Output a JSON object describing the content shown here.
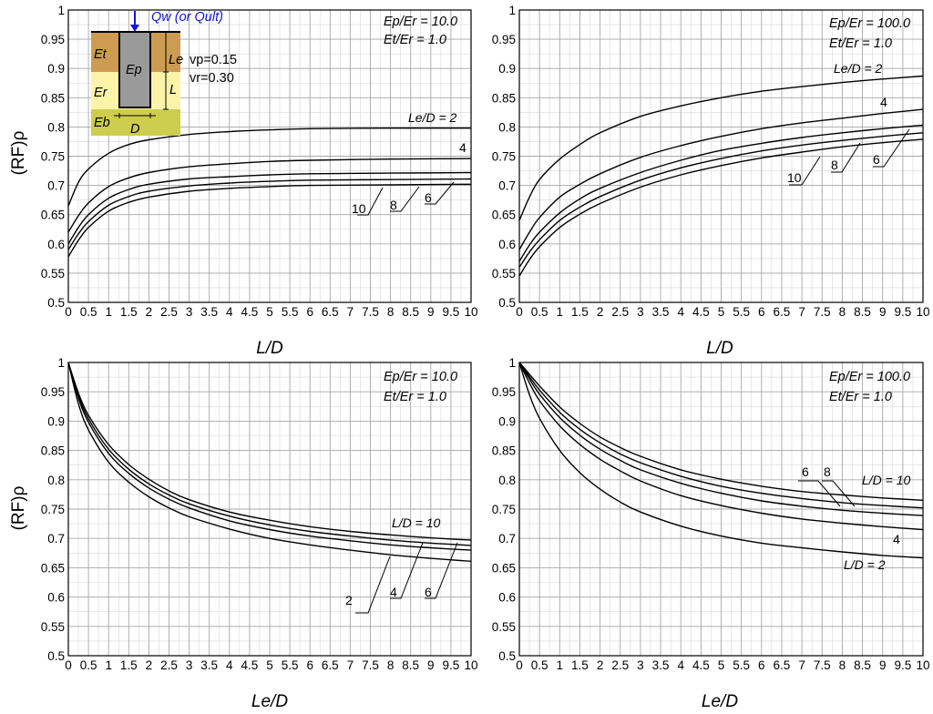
{
  "chart_data": [
    {
      "id": "tl",
      "type": "line",
      "xlabel": "L/D",
      "ylabel": "(RF)ρ",
      "xlim": [
        0,
        10
      ],
      "ylim": [
        0.5,
        1.0
      ],
      "xticks": [
        "0",
        "0.5",
        "1",
        "1.5",
        "2",
        "2.5",
        "3",
        "3.5",
        "4",
        "4.5",
        "5",
        "5.5",
        "6",
        "6.5",
        "7",
        "7.5",
        "8",
        "8.5",
        "9",
        "9.5",
        "10"
      ],
      "yticks": [
        "0.5",
        "0.55",
        "0.6",
        "0.65",
        "0.7",
        "0.75",
        "0.8",
        "0.85",
        "0.9",
        "0.95",
        "1"
      ],
      "grid": true,
      "param_label_lines": [
        "Ep/Er = 10.0",
        "Et/Er = 1.0"
      ],
      "series": [
        {
          "label": "Le/D = 2",
          "x": [
            0,
            0.25,
            0.5,
            1,
            1.5,
            2,
            3,
            4,
            5,
            6,
            8,
            10
          ],
          "y": [
            0.665,
            0.705,
            0.728,
            0.755,
            0.77,
            0.778,
            0.787,
            0.792,
            0.795,
            0.797,
            0.798,
            0.798
          ]
        },
        {
          "label": "4",
          "x": [
            0,
            0.25,
            0.5,
            1,
            1.5,
            2,
            3,
            4,
            5,
            6,
            8,
            10
          ],
          "y": [
            0.62,
            0.648,
            0.67,
            0.698,
            0.713,
            0.722,
            0.732,
            0.737,
            0.741,
            0.743,
            0.745,
            0.746
          ]
        },
        {
          "label": "6",
          "x": [
            0,
            0.25,
            0.5,
            1,
            1.5,
            2,
            3,
            4,
            5,
            6,
            8,
            10
          ],
          "y": [
            0.6,
            0.628,
            0.65,
            0.678,
            0.693,
            0.702,
            0.711,
            0.715,
            0.718,
            0.72,
            0.721,
            0.722
          ]
        },
        {
          "label": "8",
          "x": [
            0,
            0.25,
            0.5,
            1,
            1.5,
            2,
            3,
            4,
            5,
            6,
            8,
            10
          ],
          "y": [
            0.59,
            0.617,
            0.638,
            0.666,
            0.681,
            0.69,
            0.699,
            0.704,
            0.707,
            0.709,
            0.71,
            0.711
          ]
        },
        {
          "label": "10",
          "x": [
            0,
            0.25,
            0.5,
            1,
            1.5,
            2,
            3,
            4,
            5,
            6,
            8,
            10
          ],
          "y": [
            0.578,
            0.606,
            0.628,
            0.656,
            0.671,
            0.68,
            0.69,
            0.695,
            0.698,
            0.7,
            0.701,
            0.702
          ]
        }
      ],
      "inset": {
        "load": "Qw (or Qult)",
        "pile": "Ep",
        "top": "Et",
        "mid": "Er",
        "bot": "Eb",
        "emb": "Le",
        "len": "L",
        "dia": "D",
        "nup": "vp=0.15",
        "nur": "vr=0.30"
      }
    },
    {
      "id": "tr",
      "type": "line",
      "xlabel": "L/D",
      "ylabel": "",
      "xlim": [
        0,
        10
      ],
      "ylim": [
        0.5,
        1.0
      ],
      "xticks": [
        "0",
        "0.5",
        "1",
        "1.5",
        "2",
        "2.5",
        "3",
        "3.5",
        "4",
        "4.5",
        "5",
        "5.5",
        "6",
        "6.5",
        "7",
        "7.5",
        "8",
        "8.5",
        "9",
        "9.5",
        "10"
      ],
      "yticks": [
        "0.5",
        "0.55",
        "0.6",
        "0.65",
        "0.7",
        "0.75",
        "0.8",
        "0.85",
        "0.9",
        "0.95",
        "1"
      ],
      "grid": true,
      "param_label_lines": [
        "Ep/Er = 100.0",
        "Et/Er = 1.0"
      ],
      "series": [
        {
          "label": "Le/D = 2",
          "x": [
            0,
            0.25,
            0.5,
            1,
            1.5,
            2,
            3,
            4,
            5,
            6,
            7,
            8,
            9,
            10
          ],
          "y": [
            0.64,
            0.68,
            0.71,
            0.745,
            0.77,
            0.79,
            0.818,
            0.836,
            0.85,
            0.861,
            0.869,
            0.876,
            0.882,
            0.887
          ]
        },
        {
          "label": "4",
          "x": [
            0,
            0.25,
            0.5,
            1,
            1.5,
            2,
            3,
            4,
            5,
            6,
            7,
            8,
            9,
            10
          ],
          "y": [
            0.59,
            0.62,
            0.645,
            0.68,
            0.702,
            0.72,
            0.748,
            0.768,
            0.784,
            0.797,
            0.807,
            0.815,
            0.823,
            0.83
          ]
        },
        {
          "label": "6",
          "x": [
            0,
            0.25,
            0.5,
            1,
            1.5,
            2,
            3,
            4,
            5,
            6,
            7,
            8,
            9,
            10
          ],
          "y": [
            0.57,
            0.598,
            0.62,
            0.653,
            0.677,
            0.695,
            0.722,
            0.743,
            0.76,
            0.772,
            0.782,
            0.79,
            0.797,
            0.803
          ]
        },
        {
          "label": "8",
          "x": [
            0,
            0.25,
            0.5,
            1,
            1.5,
            2,
            3,
            4,
            5,
            6,
            7,
            8,
            9,
            10
          ],
          "y": [
            0.56,
            0.586,
            0.607,
            0.64,
            0.663,
            0.681,
            0.709,
            0.73,
            0.746,
            0.759,
            0.769,
            0.777,
            0.784,
            0.79
          ]
        },
        {
          "label": "10",
          "x": [
            0,
            0.25,
            0.5,
            1,
            1.5,
            2,
            3,
            4,
            5,
            6,
            7,
            8,
            9,
            10
          ],
          "y": [
            0.545,
            0.573,
            0.595,
            0.628,
            0.651,
            0.669,
            0.697,
            0.718,
            0.734,
            0.747,
            0.757,
            0.766,
            0.773,
            0.779
          ]
        }
      ]
    },
    {
      "id": "bl",
      "type": "line",
      "xlabel": "Le/D",
      "ylabel": "(RF)ρ",
      "xlim": [
        0,
        10
      ],
      "ylim": [
        0.5,
        1.0
      ],
      "xticks": [
        "0",
        "0.5",
        "1",
        "1.5",
        "2",
        "2.5",
        "3",
        "3.5",
        "4",
        "4.5",
        "5",
        "5.5",
        "6",
        "6.5",
        "7",
        "7.5",
        "8",
        "8.5",
        "9",
        "9.5",
        "10"
      ],
      "yticks": [
        "0.5",
        "0.55",
        "0.6",
        "0.65",
        "0.7",
        "0.75",
        "0.8",
        "0.85",
        "0.9",
        "0.95",
        "1"
      ],
      "grid": true,
      "param_label_lines": [
        "Ep/Er = 10.0",
        "Et/Er = 1.0"
      ],
      "series": [
        {
          "label": "2",
          "x": [
            0,
            0.25,
            0.5,
            1,
            1.5,
            2,
            2.5,
            3,
            4,
            5,
            6,
            7,
            8,
            9,
            10
          ],
          "y": [
            1.0,
            0.93,
            0.885,
            0.83,
            0.796,
            0.771,
            0.752,
            0.737,
            0.716,
            0.7,
            0.689,
            0.68,
            0.672,
            0.666,
            0.661
          ]
        },
        {
          "label": "4",
          "x": [
            0,
            0.25,
            0.5,
            1,
            1.5,
            2,
            2.5,
            3,
            4,
            5,
            6,
            7,
            8,
            9,
            10
          ],
          "y": [
            1.0,
            0.94,
            0.898,
            0.845,
            0.811,
            0.786,
            0.767,
            0.752,
            0.73,
            0.715,
            0.704,
            0.696,
            0.689,
            0.684,
            0.68
          ]
        },
        {
          "label": "6",
          "x": [
            0,
            0.25,
            0.5,
            1,
            1.5,
            2,
            2.5,
            3,
            4,
            5,
            6,
            7,
            8,
            9,
            10
          ],
          "y": [
            1.0,
            0.944,
            0.904,
            0.852,
            0.818,
            0.793,
            0.774,
            0.759,
            0.738,
            0.723,
            0.712,
            0.704,
            0.697,
            0.692,
            0.688
          ]
        },
        {
          "label": "L/D = 10",
          "x": [
            0,
            0.25,
            0.5,
            1,
            1.5,
            2,
            2.5,
            3,
            4,
            5,
            6,
            7,
            8,
            9,
            10
          ],
          "y": [
            1.0,
            0.948,
            0.91,
            0.86,
            0.826,
            0.801,
            0.781,
            0.766,
            0.745,
            0.731,
            0.72,
            0.712,
            0.706,
            0.701,
            0.697
          ]
        }
      ]
    },
    {
      "id": "br",
      "type": "line",
      "xlabel": "Le/D",
      "ylabel": "",
      "xlim": [
        0,
        10
      ],
      "ylim": [
        0.5,
        1.0
      ],
      "xticks": [
        "0",
        "0.5",
        "1",
        "1.5",
        "2",
        "2.5",
        "3",
        "3.5",
        "4",
        "4.5",
        "5",
        "5.5",
        "6",
        "6.5",
        "7",
        "7.5",
        "8",
        "8.5",
        "9",
        "9.5",
        "10"
      ],
      "yticks": [
        "0.5",
        "0.55",
        "0.6",
        "0.65",
        "0.7",
        "0.75",
        "0.8",
        "0.85",
        "0.9",
        "0.95",
        "1"
      ],
      "grid": true,
      "param_label_lines": [
        "Ep/Er = 100.0",
        "Et/Er = 1.0"
      ],
      "series": [
        {
          "label": "L/D = 2",
          "x": [
            0,
            0.25,
            0.5,
            1,
            1.5,
            2,
            2.5,
            3,
            4,
            5,
            6,
            7,
            8,
            9,
            10
          ],
          "y": [
            1.0,
            0.945,
            0.905,
            0.85,
            0.812,
            0.784,
            0.762,
            0.745,
            0.721,
            0.704,
            0.692,
            0.684,
            0.677,
            0.671,
            0.667
          ]
        },
        {
          "label": "4",
          "x": [
            0,
            0.25,
            0.5,
            1,
            1.5,
            2,
            2.5,
            3,
            4,
            5,
            6,
            7,
            8,
            9,
            10
          ],
          "y": [
            1.0,
            0.965,
            0.935,
            0.892,
            0.86,
            0.835,
            0.815,
            0.798,
            0.773,
            0.756,
            0.743,
            0.733,
            0.726,
            0.72,
            0.715
          ]
        },
        {
          "label": "6",
          "x": [
            0,
            0.25,
            0.5,
            1,
            1.5,
            2,
            2.5,
            3,
            4,
            5,
            6,
            7,
            8,
            9,
            10
          ],
          "y": [
            1.0,
            0.972,
            0.946,
            0.906,
            0.876,
            0.852,
            0.833,
            0.817,
            0.794,
            0.777,
            0.764,
            0.755,
            0.748,
            0.743,
            0.739
          ]
        },
        {
          "label": "8",
          "x": [
            0,
            0.25,
            0.5,
            1,
            1.5,
            2,
            2.5,
            3,
            4,
            5,
            6,
            7,
            8,
            9,
            10
          ],
          "y": [
            1.0,
            0.976,
            0.953,
            0.915,
            0.886,
            0.863,
            0.844,
            0.829,
            0.806,
            0.789,
            0.777,
            0.768,
            0.761,
            0.756,
            0.752
          ]
        },
        {
          "label": "L/D = 10",
          "x": [
            0,
            0.25,
            0.5,
            1,
            1.5,
            2,
            2.5,
            3,
            4,
            5,
            6,
            7,
            8,
            9,
            10
          ],
          "y": [
            1.0,
            0.98,
            0.96,
            0.924,
            0.896,
            0.873,
            0.855,
            0.84,
            0.817,
            0.801,
            0.789,
            0.78,
            0.774,
            0.769,
            0.765
          ]
        }
      ]
    }
  ]
}
